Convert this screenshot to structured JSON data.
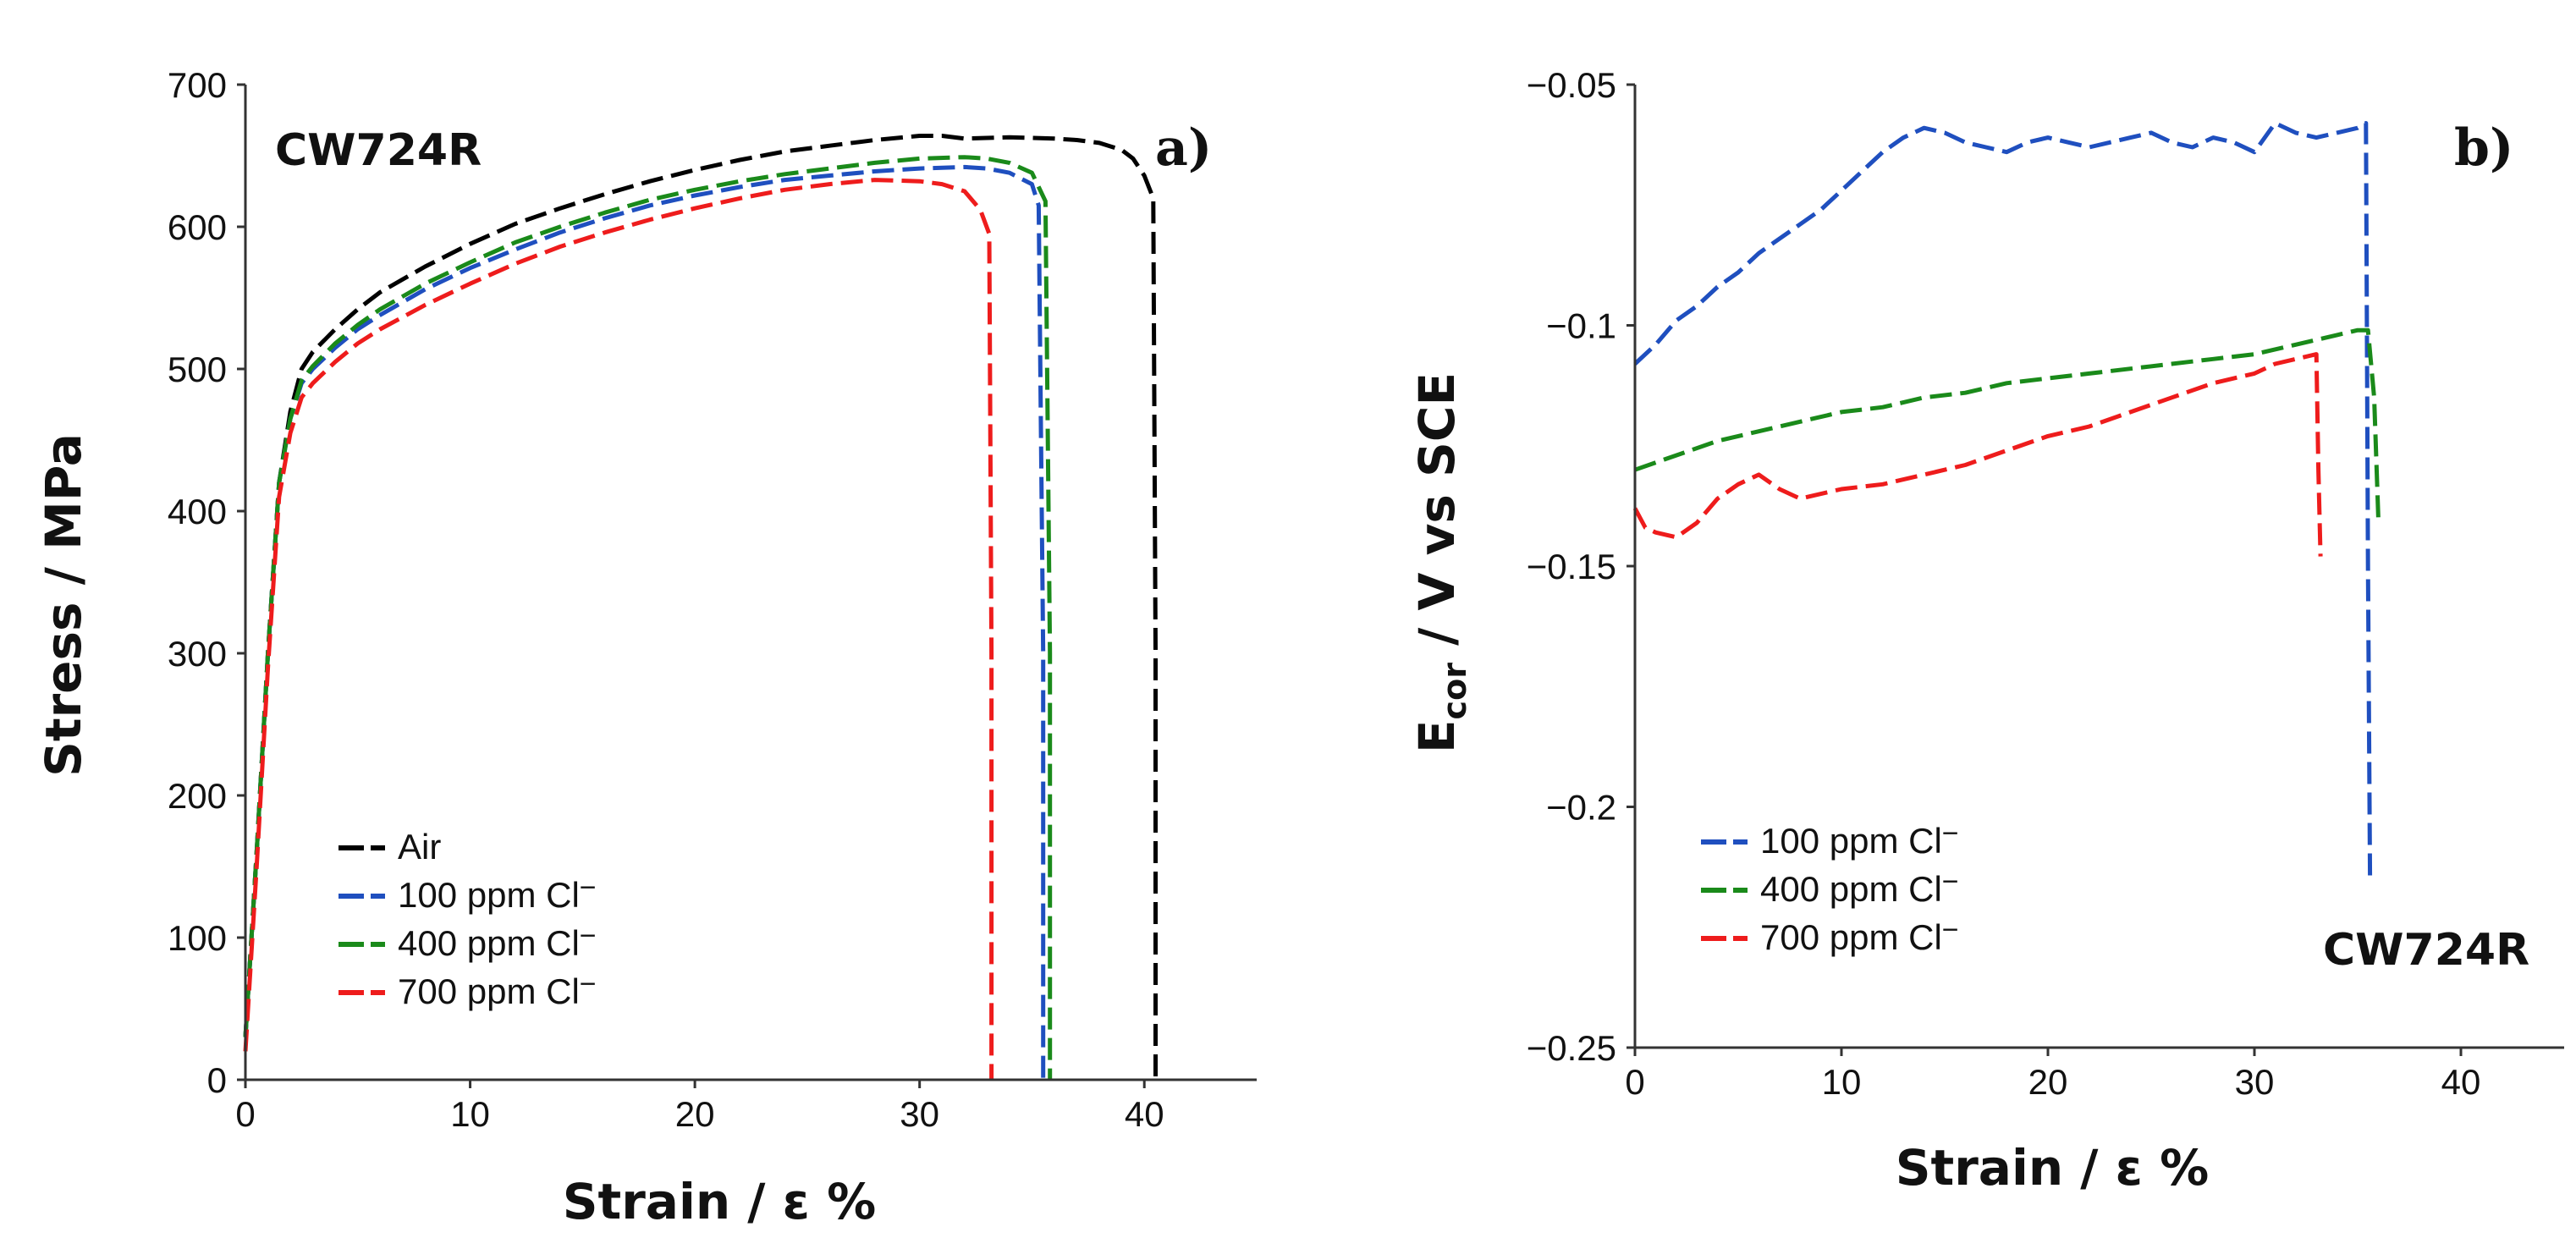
{
  "chart_data": [
    {
      "type": "line",
      "panel_label": "a)",
      "annotation": "CW724R",
      "xlabel": "Strain / ε %",
      "ylabel": "Stress / MPa",
      "xlim": [
        0,
        45
      ],
      "ylim": [
        0,
        700
      ],
      "xticks": [
        "0",
        "10",
        "20",
        "30",
        "40"
      ],
      "yticks": [
        "0",
        "100",
        "200",
        "300",
        "400",
        "500",
        "600",
        "700"
      ],
      "legend_position": "bottom-left",
      "series": [
        {
          "name": "Air",
          "legend_label": "Air",
          "color": "#000000",
          "x": [
            0,
            0.5,
            1,
            1.5,
            2,
            2.5,
            3,
            4,
            5,
            6,
            8,
            10,
            12,
            14,
            16,
            18,
            20,
            22,
            24,
            26,
            28,
            30,
            31,
            32,
            34,
            36,
            37,
            38,
            39,
            39.5,
            40,
            40.4,
            40.5,
            40.5
          ],
          "y": [
            30,
            160,
            300,
            420,
            470,
            500,
            512,
            528,
            542,
            554,
            572,
            588,
            602,
            613,
            623,
            632,
            640,
            647,
            653,
            657,
            661,
            664,
            664,
            662,
            663,
            662,
            661,
            659,
            654,
            648,
            636,
            620,
            300,
            0
          ]
        },
        {
          "name": "100 ppm Cl⁻",
          "legend_label": "100 ppm Cl",
          "color": "#1f4fbf",
          "x": [
            0,
            0.5,
            1,
            1.5,
            2,
            2.5,
            3,
            4,
            5,
            6,
            8,
            10,
            12,
            14,
            16,
            18,
            20,
            22,
            24,
            26,
            28,
            30,
            32,
            33,
            34,
            35,
            35.3,
            35.5,
            35.5
          ],
          "y": [
            30,
            160,
            300,
            420,
            465,
            490,
            500,
            515,
            528,
            538,
            556,
            571,
            584,
            596,
            606,
            615,
            622,
            628,
            633,
            636,
            639,
            641,
            642,
            641,
            638,
            630,
            615,
            300,
            0
          ]
        },
        {
          "name": "400 ppm Cl⁻",
          "legend_label": "400 ppm Cl",
          "color": "#1a8a1a",
          "x": [
            0,
            0.5,
            1,
            1.5,
            2,
            2.5,
            3,
            4,
            5,
            6,
            8,
            10,
            12,
            14,
            16,
            18,
            20,
            22,
            24,
            26,
            28,
            30,
            32,
            33,
            34,
            35,
            35.6,
            35.8,
            35.8
          ],
          "y": [
            30,
            160,
            300,
            420,
            465,
            492,
            502,
            518,
            531,
            542,
            560,
            575,
            589,
            600,
            610,
            619,
            626,
            632,
            637,
            641,
            645,
            648,
            649,
            648,
            645,
            638,
            618,
            300,
            0
          ]
        },
        {
          "name": "700 ppm Cl⁻",
          "legend_label": "700 ppm Cl",
          "color": "#ee1c1c",
          "x": [
            0,
            0.5,
            1,
            1.5,
            2,
            2.5,
            3,
            4,
            5,
            6,
            8,
            10,
            12,
            14,
            16,
            18,
            20,
            22,
            24,
            26,
            28,
            30,
            31,
            32,
            32.7,
            33.1,
            33.2,
            33.2
          ],
          "y": [
            20,
            150,
            290,
            410,
            455,
            480,
            490,
            505,
            518,
            528,
            545,
            560,
            574,
            586,
            596,
            605,
            613,
            620,
            626,
            630,
            633,
            632,
            630,
            625,
            612,
            595,
            300,
            0
          ]
        }
      ]
    },
    {
      "type": "line",
      "panel_label": "b)",
      "annotation": "CW724R",
      "xlabel": "Strain / ε %",
      "ylabel": "E",
      "ylabel_subscript": "cor",
      "ylabel_suffix": " / V vs SCE",
      "xlim": [
        0,
        45
      ],
      "ylim": [
        -0.25,
        -0.05
      ],
      "xticks": [
        "0",
        "10",
        "20",
        "30",
        "40"
      ],
      "yticks": [
        "−0.05",
        "−0.1",
        "−0.15",
        "−0.2",
        "−0.25"
      ],
      "legend_position": "bottom-left",
      "series": [
        {
          "name": "100 ppm Cl⁻",
          "legend_label": "100 ppm Cl",
          "color": "#1f4fbf",
          "x": [
            0,
            1,
            2,
            3,
            4,
            5,
            6,
            7,
            8,
            9,
            10,
            11,
            12,
            13,
            14,
            15,
            16,
            17,
            18,
            19,
            20,
            21,
            22,
            23,
            24,
            25,
            26,
            27,
            28,
            29,
            30,
            31,
            32,
            33,
            34,
            35,
            35.4,
            35.5,
            35.6
          ],
          "y": [
            -0.108,
            -0.104,
            -0.099,
            -0.096,
            -0.092,
            -0.089,
            -0.085,
            -0.082,
            -0.079,
            -0.076,
            -0.072,
            -0.068,
            -0.064,
            -0.061,
            -0.059,
            -0.06,
            -0.062,
            -0.063,
            -0.064,
            -0.062,
            -0.061,
            -0.062,
            -0.063,
            -0.062,
            -0.061,
            -0.06,
            -0.062,
            -0.063,
            -0.061,
            -0.062,
            -0.064,
            -0.058,
            -0.06,
            -0.061,
            -0.06,
            -0.059,
            -0.058,
            -0.15,
            -0.215
          ]
        },
        {
          "name": "400 ppm Cl⁻",
          "legend_label": "400 ppm Cl",
          "color": "#1a8a1a",
          "x": [
            0,
            2,
            4,
            6,
            8,
            10,
            12,
            14,
            16,
            18,
            20,
            22,
            24,
            26,
            28,
            30,
            32,
            34,
            35,
            35.5,
            35.8,
            36
          ],
          "y": [
            -0.13,
            -0.127,
            -0.124,
            -0.122,
            -0.12,
            -0.118,
            -0.117,
            -0.115,
            -0.114,
            -0.112,
            -0.111,
            -0.11,
            -0.109,
            -0.108,
            -0.107,
            -0.106,
            -0.104,
            -0.102,
            -0.101,
            -0.101,
            -0.115,
            -0.14
          ]
        },
        {
          "name": "700 ppm Cl⁻",
          "legend_label": "700 ppm Cl",
          "color": "#ee1c1c",
          "x": [
            0,
            0.5,
            1,
            2,
            3,
            4,
            5,
            6,
            7,
            8,
            10,
            12,
            14,
            16,
            18,
            20,
            22,
            24,
            26,
            28,
            30,
            31,
            32,
            33,
            33.1,
            33.2
          ],
          "y": [
            -0.138,
            -0.142,
            -0.143,
            -0.144,
            -0.141,
            -0.136,
            -0.133,
            -0.131,
            -0.134,
            -0.136,
            -0.134,
            -0.133,
            -0.131,
            -0.129,
            -0.126,
            -0.123,
            -0.121,
            -0.118,
            -0.115,
            -0.112,
            -0.11,
            -0.108,
            -0.107,
            -0.106,
            -0.13,
            -0.148
          ]
        }
      ]
    }
  ]
}
